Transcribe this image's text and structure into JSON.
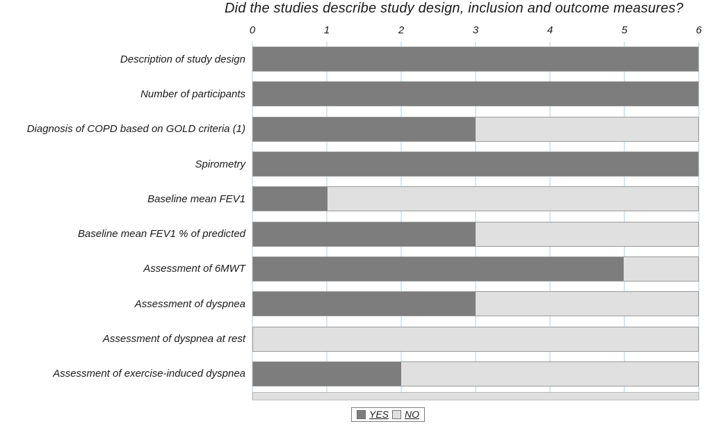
{
  "chart_data": {
    "type": "bar",
    "orientation": "horizontal",
    "stacked": true,
    "title": "Did the studies describe study design, inclusion and outcome measures?",
    "categories": [
      "Description of study design",
      "Number of participants",
      "Diagnosis of COPD based on GOLD criteria (1)",
      "Spirometry",
      "Baseline mean FEV1",
      "Baseline mean FEV1 % of predicted",
      "Assessment of 6MWT",
      "Assessment of dyspnea",
      "Assessment of dyspnea at rest",
      "Assessment of exercise-induced dyspnea"
    ],
    "series": [
      {
        "name": "YES",
        "color": "#7d7d7d",
        "values": [
          6,
          6,
          3,
          6,
          1,
          3,
          5,
          3,
          0,
          2
        ]
      },
      {
        "name": "NO",
        "color": "#e0e0e0",
        "values": [
          0,
          0,
          3,
          0,
          5,
          3,
          1,
          3,
          6,
          4
        ]
      }
    ],
    "xlim": [
      0,
      6
    ],
    "xticks": [
      0,
      1,
      2,
      3,
      4,
      5,
      6
    ],
    "grid": true,
    "gridline_color": "#aecfe4",
    "legend_position": "bottom"
  }
}
